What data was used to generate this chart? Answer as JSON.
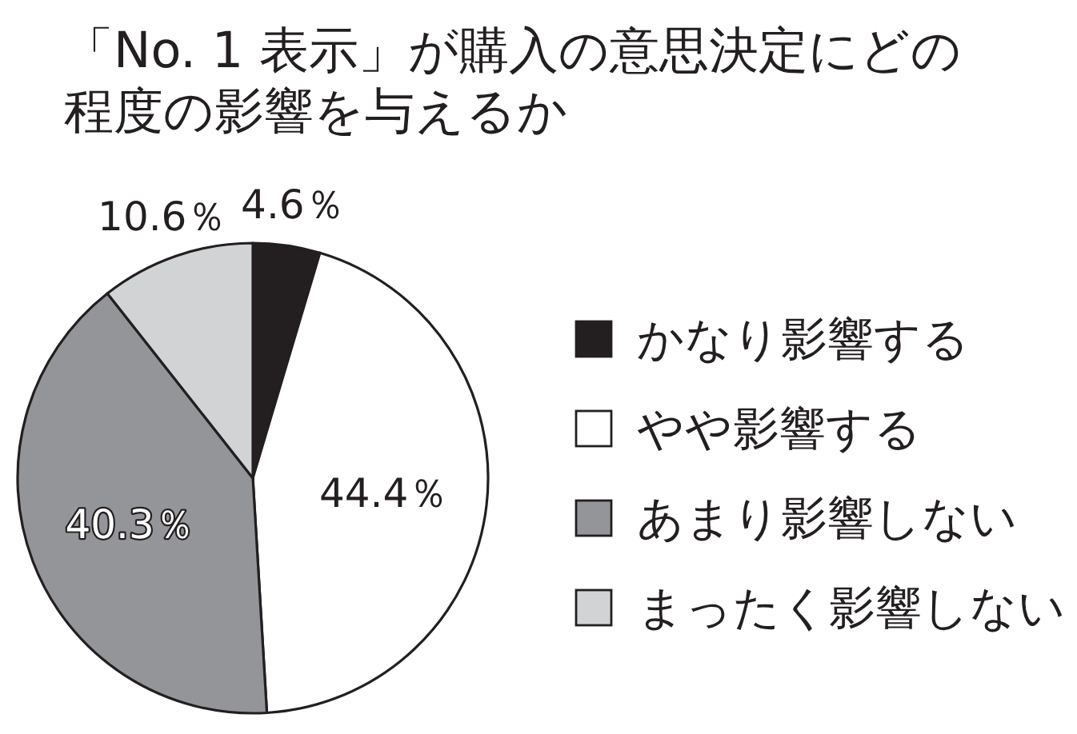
{
  "chart_data": {
    "type": "pie",
    "title": "「No. 1 表示」が購入の意思決定にどの程度の影響を与えるか",
    "categories": [
      "かなり影響する",
      "やや影響する",
      "あまり影響しない",
      "まったく影響しない"
    ],
    "values": [
      4.6,
      44.4,
      40.3,
      10.6
    ],
    "colors": [
      "#231f20",
      "#ffffff",
      "#939598",
      "#d1d3d4"
    ],
    "value_labels": [
      "4.6％",
      "44.4％",
      "40.3％",
      "10.6％"
    ],
    "legend": "right"
  }
}
